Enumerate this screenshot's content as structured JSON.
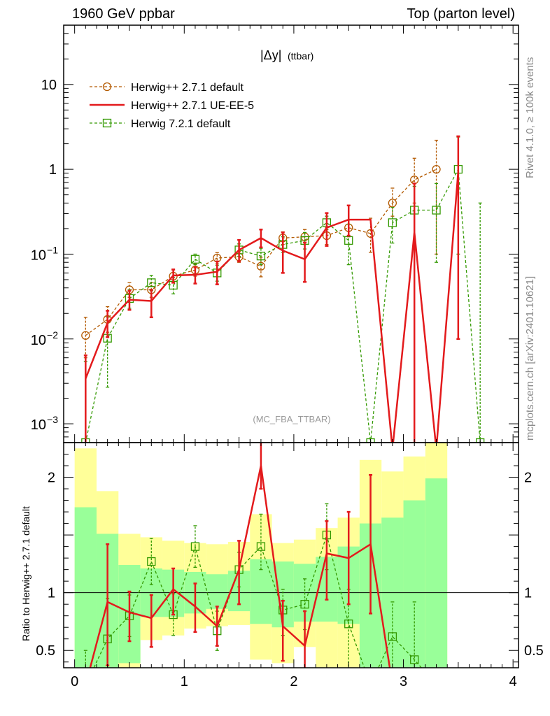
{
  "header": {
    "left": "1960 GeV ppbar",
    "right": "Top (parton level)"
  },
  "side_labels": {
    "rivet": "Rivet 4.1.0, ≥ 100k events",
    "mcplots": "mcplots.cern.ch [arXiv:2401.10621]"
  },
  "colors": {
    "herwig_default": "#b35900",
    "ue_ee5": "#e31a1c",
    "herwig721": "#339900",
    "band_yellow": "#ffff99",
    "band_green": "#99ff99"
  },
  "chart_data": [
    {
      "type": "line",
      "title": "|Δy|",
      "title_suffix": "(ttbar)",
      "watermark": "(MC_FBA_TTBAR)",
      "yscale": "log",
      "xlim": [
        -0.1,
        4.05
      ],
      "ylim": [
        0.0006,
        50
      ],
      "yticks": [
        {
          "v": 0.001,
          "base": "10",
          "exp": "−3"
        },
        {
          "v": 0.01,
          "base": "10",
          "exp": "−2"
        },
        {
          "v": 0.1,
          "base": "10",
          "exp": "−1"
        },
        {
          "v": 1,
          "label": "1"
        },
        {
          "v": 10,
          "label": "10"
        }
      ],
      "legend": [
        {
          "label": "Herwig++ 2.7.1 default",
          "series": 0
        },
        {
          "label": "Herwig++ 2.7.1 UE-EE-5",
          "series": 1
        },
        {
          "label": "Herwig 7.2.1 default",
          "series": 2
        }
      ],
      "series": [
        {
          "name": "Herwig++ 2.7.1 default",
          "style": "dashed",
          "marker": "circle",
          "x": [
            0.1,
            0.3,
            0.5,
            0.7,
            0.9,
            1.1,
            1.3,
            1.5,
            1.7,
            1.9,
            2.1,
            2.3,
            2.5,
            2.7,
            2.9,
            3.1,
            3.3
          ],
          "y": [
            0.011,
            0.017,
            0.038,
            0.038,
            0.055,
            0.065,
            0.09,
            0.093,
            0.072,
            0.155,
            0.16,
            0.165,
            0.205,
            0.175,
            0.4,
            0.75,
            1.0
          ],
          "err_lo": [
            0.005,
            0.005,
            0.007,
            0.007,
            0.009,
            0.01,
            0.013,
            0.013,
            0.018,
            0.025,
            0.03,
            0.035,
            0.045,
            0.07,
            0.12,
            0.35,
            0.9
          ],
          "err_hi": [
            0.007,
            0.007,
            0.008,
            0.008,
            0.01,
            0.012,
            0.014,
            0.015,
            0.02,
            0.028,
            0.035,
            0.04,
            0.05,
            0.09,
            0.2,
            0.6,
            1.2
          ]
        },
        {
          "name": "Herwig++ 2.7.1 UE-EE-5",
          "style": "solid",
          "marker": "none",
          "x": [
            0.1,
            0.3,
            0.5,
            0.7,
            0.9,
            1.1,
            1.3,
            1.5,
            1.7,
            1.9,
            2.1,
            2.3,
            2.5,
            2.7,
            2.9,
            3.1,
            3.3,
            3.5
          ],
          "y": [
            0.0034,
            0.0155,
            0.029,
            0.028,
            0.056,
            0.057,
            0.062,
            0.112,
            0.155,
            0.11,
            0.087,
            0.205,
            0.255,
            0.255,
            0.0005,
            0.18,
            0.0005,
            0.95
          ],
          "edges": [
            0.0,
            0.2,
            0.4,
            0.6,
            0.8,
            1.0,
            1.2,
            1.4,
            1.6,
            1.8,
            2.0,
            2.2,
            2.4,
            2.6,
            2.8,
            3.0,
            3.2,
            3.4,
            3.6
          ],
          "flat_last": [
            2.4,
            2.8
          ],
          "err_lo": [
            0.003,
            0.005,
            0.007,
            0.01,
            0.01,
            0.012,
            0.018,
            0.03,
            0.035,
            0.05,
            0.04,
            0.08,
            0.09,
            0.0,
            0.0,
            0.18,
            0.0,
            0.94
          ],
          "err_hi": [
            0.003,
            0.006,
            0.008,
            0.01,
            0.01,
            0.013,
            0.02,
            0.035,
            0.04,
            0.07,
            0.05,
            0.1,
            0.12,
            0.0,
            0.0,
            0.5,
            0.0,
            1.5
          ]
        },
        {
          "name": "Herwig 7.2.1 default",
          "style": "dashed",
          "marker": "square",
          "x": [
            0.1,
            0.3,
            0.5,
            0.7,
            0.9,
            1.1,
            1.3,
            1.5,
            1.7,
            1.9,
            2.1,
            2.3,
            2.5,
            2.7,
            2.9,
            3.1,
            3.3,
            3.5,
            3.7
          ],
          "y": [
            0.0006,
            0.0102,
            0.03,
            0.046,
            0.043,
            0.087,
            0.06,
            0.112,
            0.095,
            0.13,
            0.145,
            0.235,
            0.145,
            0.0006,
            0.235,
            0.33,
            0.33,
            1.0,
            0.0006
          ],
          "err_lo": [
            0.0,
            0.0075,
            0.007,
            0.009,
            0.009,
            0.012,
            0.012,
            0.018,
            0.02,
            0.025,
            0.03,
            0.04,
            0.07,
            0.0,
            0.1,
            0.2,
            0.25,
            0.9,
            0.0
          ],
          "err_hi": [
            0.0048,
            0.008,
            0.008,
            0.01,
            0.01,
            0.013,
            0.014,
            0.02,
            0.022,
            0.03,
            0.035,
            0.045,
            0.08,
            0.0,
            0.12,
            0.3,
            0.35,
            1.4,
            0.4
          ]
        }
      ]
    },
    {
      "type": "line",
      "ylabel": "Ratio to Herwig++ 2.7.1 default",
      "xlim": [
        -0.1,
        4.05
      ],
      "ylim": [
        0.35,
        2.3
      ],
      "xticks": [
        {
          "v": 0,
          "label": "0"
        },
        {
          "v": 1,
          "label": "1"
        },
        {
          "v": 2,
          "label": "2"
        },
        {
          "v": 3,
          "label": "3"
        },
        {
          "v": 4,
          "label": "4"
        }
      ],
      "yticks": [
        {
          "v": 0.5,
          "label": "0.5"
        },
        {
          "v": 1,
          "label": "1"
        },
        {
          "v": 2,
          "label": "2"
        }
      ],
      "bands": {
        "edges": [
          0.0,
          0.2,
          0.4,
          0.6,
          0.8,
          1.0,
          1.2,
          1.4,
          1.6,
          1.8,
          2.0,
          2.2,
          2.4,
          2.6,
          2.8,
          3.0,
          3.2,
          3.4
        ],
        "yellow_lo": [
          0.35,
          0.35,
          0.35,
          0.59,
          0.63,
          0.69,
          0.71,
          0.72,
          0.42,
          0.39,
          0.53,
          0.35,
          0.35,
          0.35,
          0.35,
          0.35,
          0.35
        ],
        "yellow_hi": [
          2.25,
          1.88,
          1.51,
          1.48,
          1.45,
          1.43,
          1.42,
          1.44,
          1.68,
          1.43,
          1.46,
          1.56,
          1.65,
          2.15,
          2.05,
          2.18,
          2.35
        ],
        "green_lo": [
          0.35,
          0.35,
          0.39,
          0.79,
          0.79,
          0.82,
          0.86,
          0.84,
          0.73,
          0.7,
          0.75,
          0.75,
          0.73,
          0.35,
          0.35,
          0.35,
          0.35
        ],
        "green_hi": [
          1.74,
          1.51,
          1.24,
          1.21,
          1.2,
          1.18,
          1.16,
          1.19,
          1.29,
          1.27,
          1.25,
          1.31,
          1.4,
          1.6,
          1.65,
          1.8,
          1.99
        ]
      },
      "series": [
        {
          "name": "Herwig++ 2.7.1 UE-EE-5",
          "style": "solid",
          "marker": "none",
          "x": [
            0.1,
            0.3,
            0.5,
            0.7,
            0.9,
            1.1,
            1.3,
            1.5,
            1.7,
            1.9,
            2.1,
            2.3,
            2.5,
            2.7,
            2.9
          ],
          "y": [
            0.2,
            0.92,
            0.83,
            0.78,
            1.03,
            0.88,
            0.71,
            1.2,
            2.1,
            0.71,
            0.54,
            1.34,
            1.3,
            1.42,
            0.2
          ],
          "err_lo": [
            0.0,
            0.55,
            0.25,
            0.25,
            0.22,
            0.22,
            0.17,
            0.3,
            0.2,
            0.3,
            0.3,
            0.4,
            0.4,
            0.6,
            0.0
          ],
          "err_hi": [
            0.0,
            0.5,
            0.18,
            0.2,
            0.18,
            0.2,
            0.17,
            0.25,
            0.25,
            0.22,
            0.3,
            0.28,
            0.4,
            0.6,
            0.0
          ]
        },
        {
          "name": "Herwig 7.2.1 default",
          "style": "dashed",
          "marker": "square",
          "x": [
            0.1,
            0.3,
            0.5,
            0.7,
            0.9,
            1.1,
            1.3,
            1.5,
            1.7,
            1.9,
            2.1,
            2.3,
            2.5,
            2.7,
            2.9,
            3.1,
            3.3
          ],
          "y": [
            0.2,
            0.6,
            0.8,
            1.27,
            0.81,
            1.4,
            0.67,
            1.2,
            1.4,
            0.85,
            0.9,
            1.5,
            0.73,
            0.2,
            0.62,
            0.42,
            0.2
          ],
          "err_lo": [
            0.0,
            0.4,
            0.18,
            0.2,
            0.18,
            0.18,
            0.17,
            0.15,
            0.2,
            0.22,
            0.22,
            0.3,
            0.4,
            0.0,
            0.4,
            0.2,
            0.0
          ],
          "err_hi": [
            0.3,
            0.35,
            0.18,
            0.2,
            0.18,
            0.18,
            0.17,
            0.15,
            0.28,
            0.18,
            0.22,
            0.27,
            0.3,
            0.0,
            0.3,
            0.5,
            0.0
          ]
        }
      ]
    }
  ]
}
